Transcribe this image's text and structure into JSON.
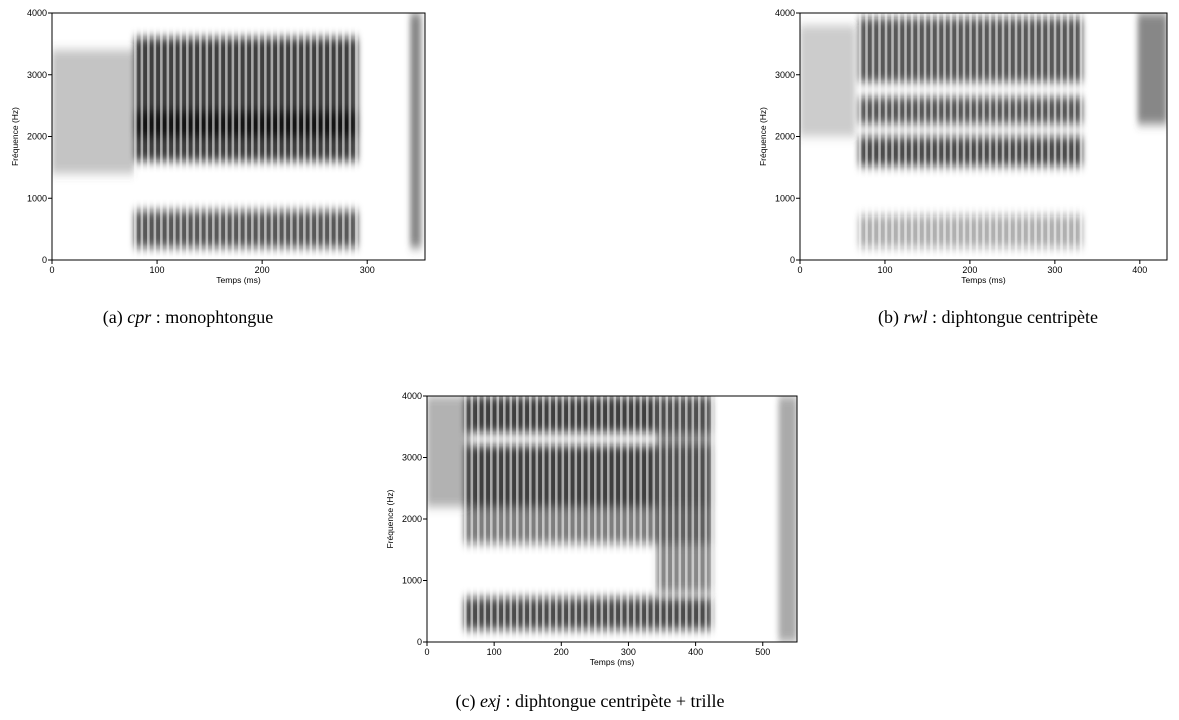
{
  "chart_data": [
    {
      "type": "spectrogram",
      "xlabel": "Temps (ms)",
      "ylabel": "Fréquence (Hz)",
      "xlim": [
        0,
        355
      ],
      "xticks": [
        0,
        100,
        200,
        300
      ],
      "ylim": [
        0,
        4000
      ],
      "yticks": [
        0,
        1000,
        2000,
        3000,
        4000
      ],
      "caption": {
        "label": "(a)",
        "name": "cpr",
        "text": ": monophtongue"
      }
    },
    {
      "type": "spectrogram",
      "xlabel": "Temps (ms)",
      "ylabel": "Fréquence (Hz)",
      "xlim": [
        0,
        432
      ],
      "xticks": [
        0,
        100,
        200,
        300,
        400
      ],
      "ylim": [
        0,
        4000
      ],
      "yticks": [
        0,
        1000,
        2000,
        3000,
        4000
      ],
      "caption": {
        "label": "(b)",
        "name": "rwl",
        "text": ": diphtongue centripète"
      }
    },
    {
      "type": "spectrogram",
      "xlabel": "Temps (ms)",
      "ylabel": "Fréquence (Hz)",
      "xlim": [
        0,
        551
      ],
      "xticks": [
        0,
        100,
        200,
        300,
        400,
        500
      ],
      "ylim": [
        0,
        4000
      ],
      "yticks": [
        0,
        1000,
        2000,
        3000,
        4000
      ],
      "caption": {
        "label": "(c)",
        "name": "exj",
        "text": ": diphtongue centripète + trille"
      }
    }
  ]
}
